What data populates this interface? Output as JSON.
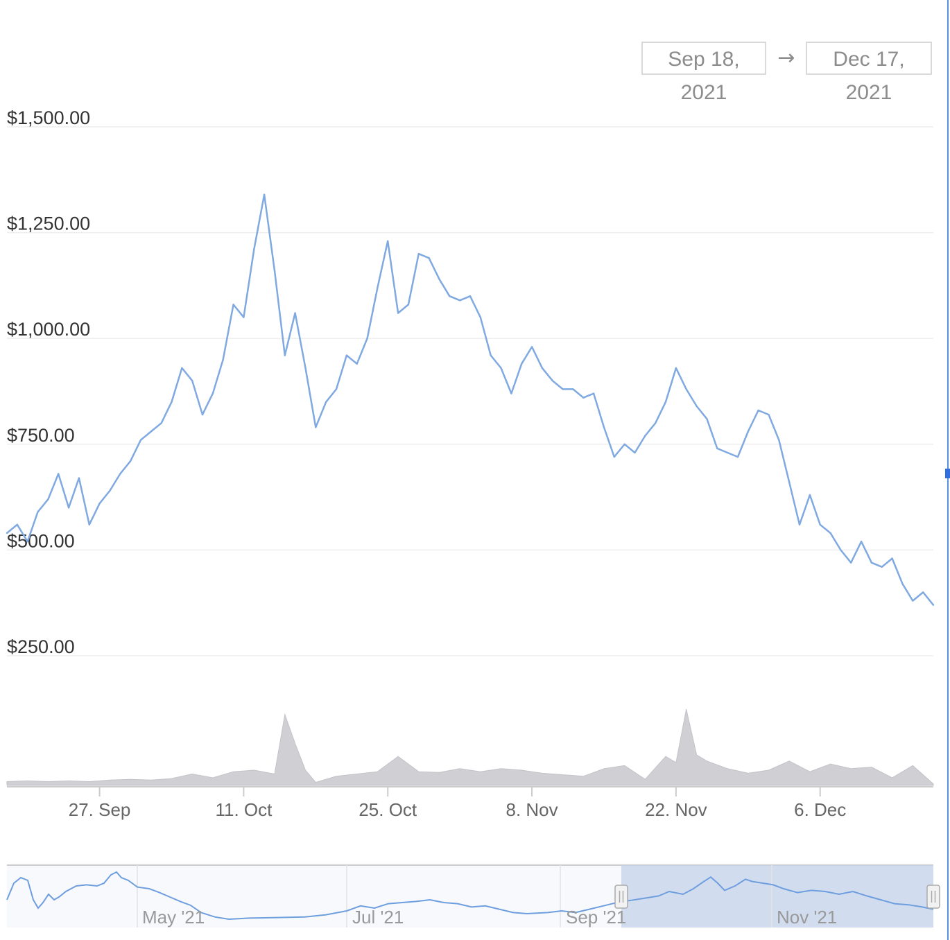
{
  "range_selector": {
    "start": "Sep 18, 2021",
    "arrow": "→",
    "end": "Dec 17, 2021"
  },
  "colors": {
    "price_line": "#7fa9e0",
    "volume_fill": "#cfcfd4",
    "navigator_mask": "#c6d2ea",
    "gridline": "#eeeeee"
  },
  "chart_data": {
    "type": "line",
    "y_axis": {
      "range": [
        250,
        1500
      ],
      "ticks": [
        1500,
        1250,
        1000,
        750,
        500,
        250
      ],
      "tick_labels": [
        "$1,500.00",
        "$1,250.00",
        "$1,000.00",
        "$750.00",
        "$500.00",
        "$250.00"
      ]
    },
    "x_axis": {
      "range": [
        "2021-09-18",
        "2021-12-17"
      ],
      "ticks": [
        {
          "date": "2021-09-27",
          "label": "27. Sep"
        },
        {
          "date": "2021-10-11",
          "label": "11. Oct"
        },
        {
          "date": "2021-10-25",
          "label": "25. Oct"
        },
        {
          "date": "2021-11-08",
          "label": "8. Nov"
        },
        {
          "date": "2021-11-22",
          "label": "22. Nov"
        },
        {
          "date": "2021-12-06",
          "label": "6. Dec"
        }
      ]
    },
    "grid": true,
    "price_series": [
      {
        "x": "2021-09-18",
        "y": 540
      },
      {
        "x": "2021-09-19",
        "y": 560
      },
      {
        "x": "2021-09-20",
        "y": 520
      },
      {
        "x": "2021-09-21",
        "y": 590
      },
      {
        "x": "2021-09-22",
        "y": 620
      },
      {
        "x": "2021-09-23",
        "y": 680
      },
      {
        "x": "2021-09-24",
        "y": 600
      },
      {
        "x": "2021-09-25",
        "y": 670
      },
      {
        "x": "2021-09-26",
        "y": 560
      },
      {
        "x": "2021-09-27",
        "y": 610
      },
      {
        "x": "2021-09-28",
        "y": 640
      },
      {
        "x": "2021-09-29",
        "y": 680
      },
      {
        "x": "2021-09-30",
        "y": 710
      },
      {
        "x": "2021-10-01",
        "y": 760
      },
      {
        "x": "2021-10-02",
        "y": 780
      },
      {
        "x": "2021-10-03",
        "y": 800
      },
      {
        "x": "2021-10-04",
        "y": 850
      },
      {
        "x": "2021-10-05",
        "y": 930
      },
      {
        "x": "2021-10-06",
        "y": 900
      },
      {
        "x": "2021-10-07",
        "y": 820
      },
      {
        "x": "2021-10-08",
        "y": 870
      },
      {
        "x": "2021-10-09",
        "y": 950
      },
      {
        "x": "2021-10-10",
        "y": 1080
      },
      {
        "x": "2021-10-11",
        "y": 1050
      },
      {
        "x": "2021-10-12",
        "y": 1210
      },
      {
        "x": "2021-10-13",
        "y": 1340
      },
      {
        "x": "2021-10-14",
        "y": 1160
      },
      {
        "x": "2021-10-15",
        "y": 960
      },
      {
        "x": "2021-10-16",
        "y": 1060
      },
      {
        "x": "2021-10-17",
        "y": 930
      },
      {
        "x": "2021-10-18",
        "y": 790
      },
      {
        "x": "2021-10-19",
        "y": 850
      },
      {
        "x": "2021-10-20",
        "y": 880
      },
      {
        "x": "2021-10-21",
        "y": 960
      },
      {
        "x": "2021-10-22",
        "y": 940
      },
      {
        "x": "2021-10-23",
        "y": 1000
      },
      {
        "x": "2021-10-24",
        "y": 1120
      },
      {
        "x": "2021-10-25",
        "y": 1230
      },
      {
        "x": "2021-10-26",
        "y": 1060
      },
      {
        "x": "2021-10-27",
        "y": 1080
      },
      {
        "x": "2021-10-28",
        "y": 1200
      },
      {
        "x": "2021-10-29",
        "y": 1190
      },
      {
        "x": "2021-10-30",
        "y": 1140
      },
      {
        "x": "2021-10-31",
        "y": 1100
      },
      {
        "x": "2021-11-01",
        "y": 1090
      },
      {
        "x": "2021-11-02",
        "y": 1100
      },
      {
        "x": "2021-11-03",
        "y": 1050
      },
      {
        "x": "2021-11-04",
        "y": 960
      },
      {
        "x": "2021-11-05",
        "y": 930
      },
      {
        "x": "2021-11-06",
        "y": 870
      },
      {
        "x": "2021-11-07",
        "y": 940
      },
      {
        "x": "2021-11-08",
        "y": 980
      },
      {
        "x": "2021-11-09",
        "y": 930
      },
      {
        "x": "2021-11-10",
        "y": 900
      },
      {
        "x": "2021-11-11",
        "y": 880
      },
      {
        "x": "2021-11-12",
        "y": 880
      },
      {
        "x": "2021-11-13",
        "y": 860
      },
      {
        "x": "2021-11-14",
        "y": 870
      },
      {
        "x": "2021-11-15",
        "y": 790
      },
      {
        "x": "2021-11-16",
        "y": 720
      },
      {
        "x": "2021-11-17",
        "y": 750
      },
      {
        "x": "2021-11-18",
        "y": 730
      },
      {
        "x": "2021-11-19",
        "y": 770
      },
      {
        "x": "2021-11-20",
        "y": 800
      },
      {
        "x": "2021-11-21",
        "y": 850
      },
      {
        "x": "2021-11-22",
        "y": 930
      },
      {
        "x": "2021-11-23",
        "y": 880
      },
      {
        "x": "2021-11-24",
        "y": 840
      },
      {
        "x": "2021-11-25",
        "y": 810
      },
      {
        "x": "2021-11-26",
        "y": 740
      },
      {
        "x": "2021-11-27",
        "y": 730
      },
      {
        "x": "2021-11-28",
        "y": 720
      },
      {
        "x": "2021-11-29",
        "y": 780
      },
      {
        "x": "2021-11-30",
        "y": 830
      },
      {
        "x": "2021-12-01",
        "y": 820
      },
      {
        "x": "2021-12-02",
        "y": 760
      },
      {
        "x": "2021-12-03",
        "y": 660
      },
      {
        "x": "2021-12-04",
        "y": 560
      },
      {
        "x": "2021-12-05",
        "y": 630
      },
      {
        "x": "2021-12-06",
        "y": 560
      },
      {
        "x": "2021-12-07",
        "y": 540
      },
      {
        "x": "2021-12-08",
        "y": 500
      },
      {
        "x": "2021-12-09",
        "y": 470
      },
      {
        "x": "2021-12-10",
        "y": 520
      },
      {
        "x": "2021-12-11",
        "y": 470
      },
      {
        "x": "2021-12-12",
        "y": 460
      },
      {
        "x": "2021-12-13",
        "y": 480
      },
      {
        "x": "2021-12-14",
        "y": 420
      },
      {
        "x": "2021-12-15",
        "y": 380
      },
      {
        "x": "2021-12-16",
        "y": 400
      },
      {
        "x": "2021-12-17",
        "y": 370
      }
    ],
    "volume_series": [
      {
        "x": "2021-09-18",
        "v": 0.05
      },
      {
        "x": "2021-09-20",
        "v": 0.06
      },
      {
        "x": "2021-09-22",
        "v": 0.05
      },
      {
        "x": "2021-09-24",
        "v": 0.06
      },
      {
        "x": "2021-09-26",
        "v": 0.05
      },
      {
        "x": "2021-09-28",
        "v": 0.07
      },
      {
        "x": "2021-09-30",
        "v": 0.08
      },
      {
        "x": "2021-10-02",
        "v": 0.07
      },
      {
        "x": "2021-10-04",
        "v": 0.09
      },
      {
        "x": "2021-10-06",
        "v": 0.15
      },
      {
        "x": "2021-10-08",
        "v": 0.1
      },
      {
        "x": "2021-10-10",
        "v": 0.18
      },
      {
        "x": "2021-10-12",
        "v": 0.2
      },
      {
        "x": "2021-10-14",
        "v": 0.15
      },
      {
        "x": "2021-10-15",
        "v": 0.93
      },
      {
        "x": "2021-10-16",
        "v": 0.55
      },
      {
        "x": "2021-10-17",
        "v": 0.2
      },
      {
        "x": "2021-10-18",
        "v": 0.04
      },
      {
        "x": "2021-10-20",
        "v": 0.12
      },
      {
        "x": "2021-10-22",
        "v": 0.15
      },
      {
        "x": "2021-10-24",
        "v": 0.18
      },
      {
        "x": "2021-10-26",
        "v": 0.38
      },
      {
        "x": "2021-10-28",
        "v": 0.18
      },
      {
        "x": "2021-10-30",
        "v": 0.17
      },
      {
        "x": "2021-11-01",
        "v": 0.22
      },
      {
        "x": "2021-11-03",
        "v": 0.18
      },
      {
        "x": "2021-11-05",
        "v": 0.22
      },
      {
        "x": "2021-11-07",
        "v": 0.2
      },
      {
        "x": "2021-11-09",
        "v": 0.16
      },
      {
        "x": "2021-11-11",
        "v": 0.14
      },
      {
        "x": "2021-11-13",
        "v": 0.12
      },
      {
        "x": "2021-11-15",
        "v": 0.22
      },
      {
        "x": "2021-11-17",
        "v": 0.26
      },
      {
        "x": "2021-11-19",
        "v": 0.08
      },
      {
        "x": "2021-11-21",
        "v": 0.38
      },
      {
        "x": "2021-11-22",
        "v": 0.3
      },
      {
        "x": "2021-11-23",
        "v": 1.0
      },
      {
        "x": "2021-11-24",
        "v": 0.4
      },
      {
        "x": "2021-11-25",
        "v": 0.32
      },
      {
        "x": "2021-11-27",
        "v": 0.22
      },
      {
        "x": "2021-11-29",
        "v": 0.16
      },
      {
        "x": "2021-12-01",
        "v": 0.2
      },
      {
        "x": "2021-12-03",
        "v": 0.32
      },
      {
        "x": "2021-12-05",
        "v": 0.18
      },
      {
        "x": "2021-12-07",
        "v": 0.28
      },
      {
        "x": "2021-12-09",
        "v": 0.22
      },
      {
        "x": "2021-12-11",
        "v": 0.24
      },
      {
        "x": "2021-12-13",
        "v": 0.1
      },
      {
        "x": "2021-12-15",
        "v": 0.26
      },
      {
        "x": "2021-12-17",
        "v": 0.02
      }
    ],
    "navigator": {
      "tick_labels": [
        "May '21",
        "Jul '21",
        "Sep '21",
        "Nov '21"
      ],
      "selected_range": [
        "2021-09-18",
        "2021-12-17"
      ]
    }
  }
}
